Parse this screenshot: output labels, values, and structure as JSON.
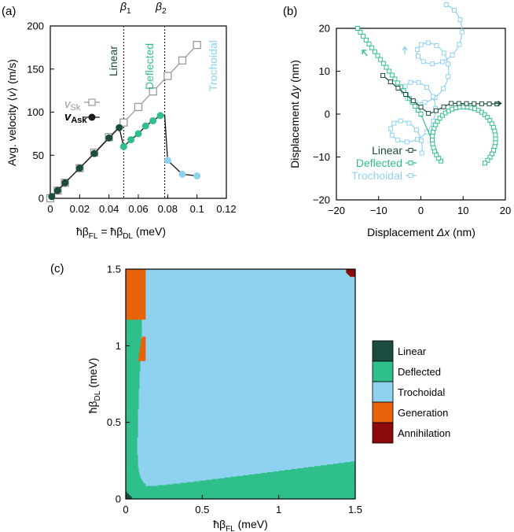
{
  "colors": {
    "linear": "#1a4d3f",
    "deflected": "#2fbf8a",
    "trochoidal": "#8fd2f0",
    "generation": "#e8620a",
    "annihilation": "#8b0a0a",
    "sk": "#9a9a9a",
    "ask": "#1a1a1a"
  },
  "chart_data": [
    {
      "panel": "(a)",
      "type": "line",
      "xlabel": "ħβ_FL = ħβ_DL (meV)",
      "ylabel": "Avg. velocity ⟨v⟩ (m/s)",
      "xlim": [
        0,
        0.12
      ],
      "ylim": [
        0,
        200
      ],
      "xticks": [
        "0",
        "0.02",
        "0.04",
        "0.06",
        "0.08",
        "0.1",
        "0.12"
      ],
      "yticks": [
        "0",
        "50",
        "100",
        "150",
        "200"
      ],
      "vlines": [
        {
          "x": 0.05,
          "label": "β1"
        },
        {
          "x": 0.078,
          "label": "β2"
        }
      ],
      "region_labels": [
        "Linear",
        "Deflected",
        "Trochoidal"
      ],
      "series": [
        {
          "name": "v_Sk",
          "marker": "open-square",
          "x": [
            0,
            0.005,
            0.01,
            0.02,
            0.03,
            0.04,
            0.05,
            0.06,
            0.07,
            0.08,
            0.09,
            0.1
          ],
          "y": [
            0,
            9,
            18,
            35,
            53,
            71,
            88,
            106,
            124,
            142,
            160,
            178
          ]
        },
        {
          "name": "v_Ask",
          "marker": "filled-circle",
          "segments": [
            {
              "phase": "linear",
              "x": [
                0.001,
                0.005,
                0.01,
                0.02,
                0.03,
                0.04,
                0.047
              ],
              "y": [
                2,
                9,
                18,
                35,
                52,
                70,
                82
              ]
            },
            {
              "phase": "deflected",
              "x": [
                0.05,
                0.055,
                0.06,
                0.065,
                0.07,
                0.075
              ],
              "y": [
                60,
                68,
                75,
                84,
                90,
                96
              ]
            },
            {
              "phase": "trochoidal",
              "x": [
                0.08,
                0.09,
                0.1
              ],
              "y": [
                44,
                28,
                26
              ]
            }
          ],
          "connectors": [
            {
              "x": [
                0.047,
                0.05
              ],
              "y": [
                82,
                60
              ]
            },
            {
              "x": [
                0.075,
                0.078,
                0.08
              ],
              "y": [
                96,
                96,
                44
              ]
            }
          ]
        }
      ],
      "legend": [
        "v_Sk",
        "v_Ask"
      ],
      "legend_placement": "left"
    },
    {
      "panel": "(b)",
      "type": "line",
      "xlabel": "Displacement Δx (nm)",
      "ylabel": "Displacement Δy (nm)",
      "xlim": [
        -20,
        20
      ],
      "ylim": [
        -20,
        20
      ],
      "xticks": [
        "−20",
        "−10",
        "0",
        "10",
        "20"
      ],
      "yticks": [
        "−20",
        "−10",
        "0",
        "10",
        "20"
      ],
      "legend": [
        "Linear",
        "Deflected",
        "Trochoidal"
      ],
      "legend_placement": "bottom-left",
      "series": [
        {
          "name": "Linear",
          "marker": "open-square",
          "kind": "path",
          "x0": 0,
          "y0": 0,
          "x1": 18,
          "y1": 2.5
        },
        {
          "name": "Deflected",
          "marker": "open-square",
          "kind": "path",
          "x0": 0,
          "y0": 0,
          "x1": 16,
          "y1": -13
        },
        {
          "name": "Trochoidal",
          "marker": "open-square",
          "kind": "trochoid"
        }
      ]
    },
    {
      "panel": "(c)",
      "type": "heatmap",
      "xlabel": "ħβ_FL (meV)",
      "ylabel": "ħβ_DL (meV)",
      "xlim": [
        0,
        1.5
      ],
      "ylim": [
        0,
        1.5
      ],
      "xticks": [
        "0",
        "0.5",
        "1",
        "1.5"
      ],
      "yticks": [
        "0",
        "0.5",
        "1",
        "1.5"
      ],
      "legend": [
        "Linear",
        "Deflected",
        "Trochoidal",
        "Generation",
        "Annihilation"
      ],
      "legend_placement": "right"
    }
  ]
}
